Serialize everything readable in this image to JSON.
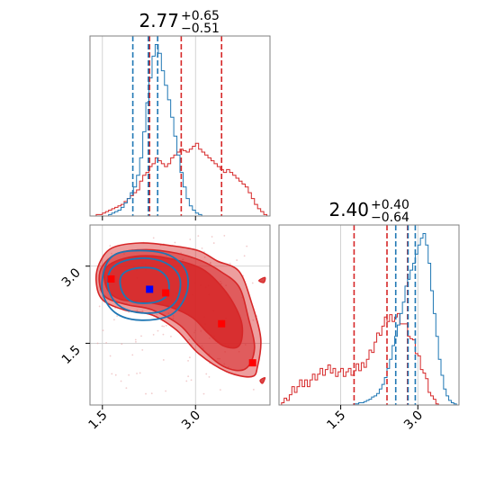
{
  "chart_data": {
    "type": "corner",
    "colors": {
      "red": "#d62728",
      "blue": "#1f77b4",
      "grid": "#c8c8c8",
      "frame": "#7f7f7f"
    },
    "panels": [
      {
        "kind": "histogram-1d",
        "parameter": "x",
        "title": {
          "median": "2.77",
          "plus": "+0.65",
          "minus": "−0.51"
        },
        "xlim": [
          1.3,
          4.2
        ],
        "grid_x": [
          1.5,
          3.0
        ],
        "tick_labels": [],
        "red_quantiles": [
          2.26,
          2.77,
          3.42
        ],
        "blue_quantiles": [
          1.99,
          2.24,
          2.39
        ],
        "blue_hist": {
          "x0": 1.3,
          "bin_width": 0.05,
          "counts": [
            0,
            0,
            0,
            0,
            0,
            0,
            1,
            2,
            3,
            4,
            6,
            9,
            12,
            16,
            20,
            28,
            40,
            58,
            78,
            95,
            110,
            118,
            112,
            100,
            90,
            80,
            68,
            55,
            42,
            30,
            20,
            12,
            7,
            4,
            2,
            1,
            0,
            0,
            0,
            0,
            0,
            0,
            0,
            0,
            0,
            0,
            0,
            0,
            0,
            0,
            0,
            0,
            0,
            0,
            0,
            0,
            0,
            0
          ]
        },
        "red_hist": {
          "x0": 1.3,
          "bin_width": 0.05,
          "counts": [
            0,
            0,
            1,
            1,
            2,
            3,
            4,
            5,
            6,
            7,
            8,
            10,
            12,
            14,
            16,
            18,
            24,
            28,
            30,
            34,
            36,
            40,
            38,
            36,
            34,
            36,
            40,
            42,
            44,
            46,
            45,
            44,
            46,
            48,
            50,
            46,
            44,
            42,
            40,
            38,
            36,
            34,
            32,
            30,
            32,
            30,
            28,
            26,
            24,
            22,
            20,
            16,
            12,
            8,
            5,
            3,
            1,
            0
          ]
        }
      },
      {
        "kind": "scatter-2d",
        "parameters": [
          "x",
          "y"
        ],
        "xlim": [
          1.3,
          4.2
        ],
        "ylim": [
          0.3,
          3.8
        ],
        "grid_x": [
          1.5,
          3.0
        ],
        "grid_y": [
          1.5,
          3.0
        ],
        "x_tick_labels": [
          "1.5",
          "3.0"
        ],
        "y_tick_labels": [
          "1.5",
          "3.0"
        ],
        "red_markers": [
          {
            "x": 1.64,
            "y": 2.75
          },
          {
            "x": 2.52,
            "y": 2.48
          },
          {
            "x": 3.42,
            "y": 1.88
          },
          {
            "x": 3.92,
            "y": 1.12
          }
        ],
        "blue_markers": [
          {
            "x": 2.26,
            "y": 2.55
          }
        ]
      },
      {
        "kind": "histogram-1d",
        "parameter": "y",
        "title": {
          "median": "2.40",
          "plus": "+0.40",
          "minus": "−0.64"
        },
        "xlim": [
          0.3,
          3.8
        ],
        "grid_x": [
          1.5,
          3.0
        ],
        "tick_labels": [
          "1.5",
          "3.0"
        ],
        "red_quantiles": [
          1.76,
          2.4,
          2.8
        ],
        "blue_quantiles": [
          2.57,
          2.81,
          2.95
        ],
        "blue_hist": {
          "x0": 0.3,
          "bin_width": 0.05,
          "counts": [
            0,
            0,
            0,
            0,
            0,
            0,
            0,
            0,
            0,
            0,
            0,
            0,
            0,
            0,
            0,
            0,
            0,
            0,
            0,
            0,
            0,
            0,
            0,
            0,
            0,
            0,
            0,
            0,
            0,
            1,
            1,
            2,
            2,
            3,
            4,
            5,
            7,
            8,
            10,
            14,
            18,
            24,
            32,
            40,
            52,
            60,
            70,
            80,
            90,
            104,
            110,
            118,
            124,
            132,
            140,
            146,
            150,
            140,
            124,
            100,
            80,
            60,
            40,
            26,
            14,
            8,
            4,
            2,
            1,
            0
          ]
        }
      }
    ]
  }
}
